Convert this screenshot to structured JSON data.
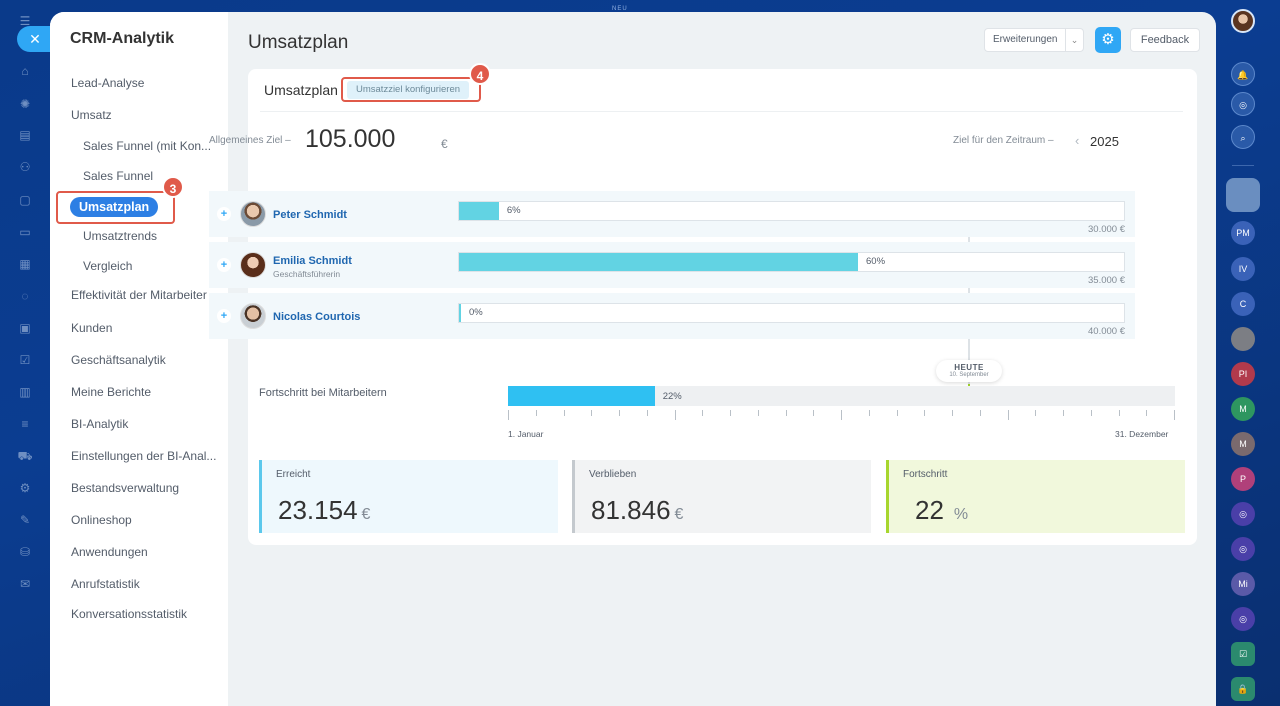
{
  "top_hint": "NEU",
  "sidebar": {
    "title": "CRM-Analytik",
    "items": [
      {
        "label": "Lead-Analyse",
        "sub": false
      },
      {
        "label": "Umsatz",
        "sub": false
      },
      {
        "label": "Sales Funnel (mit Kon...",
        "sub": true
      },
      {
        "label": "Sales Funnel",
        "sub": true
      },
      {
        "label": "Umsatzplan",
        "sub": true,
        "active": true
      },
      {
        "label": "Umsatztrends",
        "sub": true
      },
      {
        "label": "Vergleich",
        "sub": true
      },
      {
        "label": "Effektivität der Mitarbeiter",
        "sub": false
      },
      {
        "label": "Kunden",
        "sub": false
      },
      {
        "label": "Geschäftsanalytik",
        "sub": false
      },
      {
        "label": "Meine Berichte",
        "sub": false
      },
      {
        "label": "BI-Analytik",
        "sub": false
      },
      {
        "label": "Einstellungen der BI-Anal...",
        "sub": false
      },
      {
        "label": "Bestandsverwaltung",
        "sub": false
      },
      {
        "label": "Onlineshop",
        "sub": false
      },
      {
        "label": "Anwendungen",
        "sub": false
      },
      {
        "label": "Anrufstatistik",
        "sub": false
      },
      {
        "label": "Konversationsstatistik",
        "sub": false
      }
    ]
  },
  "badges": {
    "step3": "3",
    "step4": "4"
  },
  "header": {
    "title": "Umsatzplan",
    "extensions_label": "Erweiterungen",
    "feedback_label": "Feedback"
  },
  "card": {
    "title": "Umsatzplan",
    "config_button": "Umsatzziel konfigurieren",
    "goal_label": "Allgemeines Ziel",
    "goal_dash": "–",
    "goal_value": "105.000",
    "goal_currency": "€",
    "period_label": "Ziel für den Zeitraum",
    "period_dash": "–",
    "period_year": "2025"
  },
  "employees": [
    {
      "name": "Peter Schmidt",
      "role": "",
      "percent": 6,
      "percent_label": "6%",
      "target": "30.000 €"
    },
    {
      "name": "Emilia Schmidt",
      "role": "Geschäftsführerin",
      "percent": 60,
      "percent_label": "60%",
      "target": "35.000 €"
    },
    {
      "name": "Nicolas Courtois",
      "role": "",
      "percent": 0,
      "percent_label": "0%",
      "target": "40.000 €"
    }
  ],
  "today": {
    "label": "HEUTE",
    "date": "10. September"
  },
  "progress": {
    "label": "Fortschritt bei Mitarbeitern",
    "percent": 22,
    "percent_label": "22%",
    "start_label": "1. Januar",
    "end_label": "31. Dezember"
  },
  "stats": [
    {
      "label": "Erreicht",
      "value": "23.154",
      "unit": "€",
      "bg": "#eef8fd",
      "accent": "#5bc8ec"
    },
    {
      "label": "Verblieben",
      "value": "81.846",
      "unit": "€",
      "bg": "#f2f3f4",
      "accent": "#c4c9ce"
    },
    {
      "label": "Fortschritt",
      "value": "22",
      "unit": "%",
      "bg": "#f1f8dc",
      "accent": "#a7d62e"
    }
  ],
  "right_strip": [
    "PM",
    "IV",
    "C",
    "PI",
    "M",
    "M",
    "P",
    "Mi"
  ],
  "colors": {
    "accent": "#2fa7f5",
    "highlight": "#e05a4a",
    "name_link": "#2067b0"
  }
}
